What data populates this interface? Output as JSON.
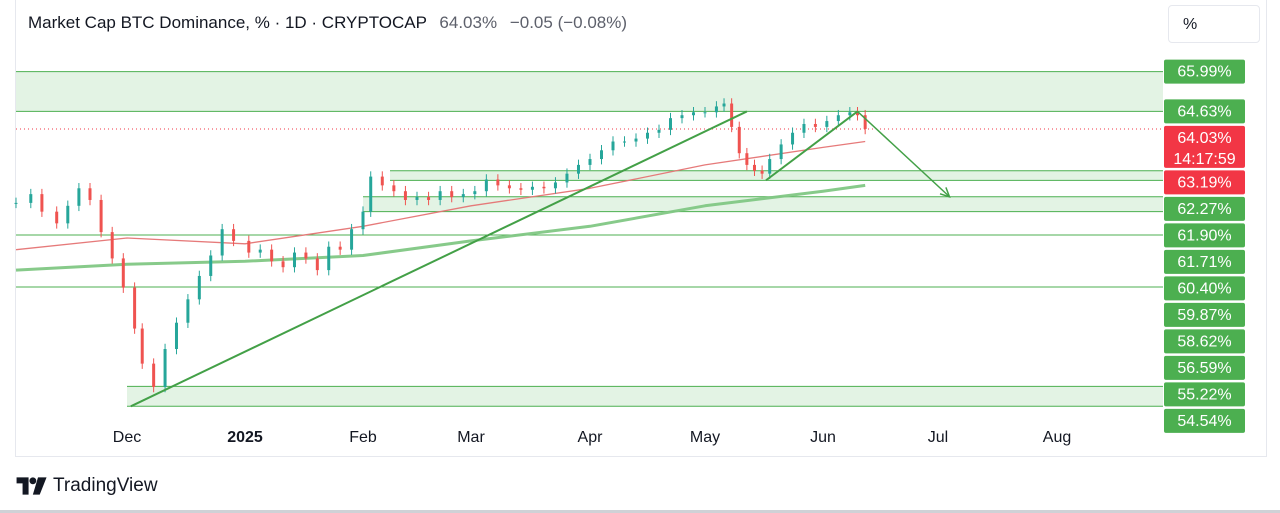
{
  "header": {
    "title": "Market Cap BTC Dominance, % · 1D · CRYPTOCAP",
    "last_price": "64.03%",
    "change": "−0.05 (−0.08%)"
  },
  "scale_button": {
    "label": "%"
  },
  "branding": {
    "name": "TradingView",
    "icon": "tradingview-logo-icon"
  },
  "colors": {
    "up": "#26a69a",
    "down": "#ef5350",
    "zone": "#e3f3e4",
    "zone_line": "#4caf50",
    "label_green": "#4caf50",
    "label_red": "#f23645",
    "ma_fast": "#e57373",
    "ma_slow": "#81c784",
    "trend": "#43a047"
  },
  "chart_data": {
    "type": "candlestick",
    "symbol": "Market Cap BTC Dominance",
    "timeframe": "1D",
    "exchange": "CRYPTOCAP",
    "last": 64.03,
    "countdown": "14:17:59",
    "x_axis_labels": [
      "Dec",
      "2025",
      "Feb",
      "Mar",
      "Apr",
      "May",
      "Jun",
      "Jul",
      "Aug"
    ],
    "x_axis_dates": [
      "2024-12-01",
      "2025-01-01",
      "2025-02-01",
      "2025-03-01",
      "2025-04-01",
      "2025-05-01",
      "2025-06-01",
      "2025-07-01",
      "2025-08-01"
    ],
    "price_labels": [
      {
        "text": "65.99%",
        "value": 65.99,
        "color": "green"
      },
      {
        "text": "64.63%",
        "value": 64.63,
        "color": "green"
      },
      {
        "text": "64.03%",
        "value": 64.03,
        "color": "red",
        "sub": "14:17:59"
      },
      {
        "text": "63.19%",
        "value": 63.19,
        "color": "red"
      },
      {
        "text": "62.27%",
        "value": 62.27,
        "color": "green"
      },
      {
        "text": "61.90%",
        "value": 61.9,
        "color": "green"
      },
      {
        "text": "61.71%",
        "value": 61.71,
        "color": "green"
      },
      {
        "text": "60.40%",
        "value": 60.4,
        "color": "green"
      },
      {
        "text": "59.87%",
        "value": 59.87,
        "color": "green"
      },
      {
        "text": "58.62%",
        "value": 58.62,
        "color": "green"
      },
      {
        "text": "56.59%",
        "value": 56.59,
        "color": "green"
      },
      {
        "text": "55.22%",
        "value": 55.22,
        "color": "green"
      },
      {
        "text": "54.54%",
        "value": 54.54,
        "color": "green"
      }
    ],
    "zones": [
      {
        "from": 64.63,
        "to": 65.99,
        "start": "2024-11-01"
      },
      {
        "from": 62.27,
        "to": 62.6,
        "start": "2025-02-08"
      },
      {
        "from": 61.2,
        "to": 61.71,
        "start": "2025-02-01"
      },
      {
        "from": 54.54,
        "to": 55.22,
        "start": "2024-12-01"
      }
    ],
    "horizontal_lines": [
      60.4,
      58.62
    ],
    "trend_lines": [
      {
        "from": [
          "2024-12-02",
          54.54
        ],
        "to": [
          "2025-05-12",
          64.63
        ]
      },
      {
        "from": [
          "2025-05-17",
          62.27
        ],
        "to": [
          "2025-06-10",
          64.63
        ]
      }
    ],
    "projection_arrow": {
      "from": [
        "2025-06-10",
        64.63
      ],
      "to": [
        "2025-07-04",
        61.71
      ]
    },
    "moving_averages": [
      {
        "name": "MA fast",
        "color": "red",
        "points": [
          [
            "2024-11-01",
            59.9
          ],
          [
            "2024-12-01",
            60.3
          ],
          [
            "2025-01-01",
            60.1
          ],
          [
            "2025-02-01",
            60.7
          ],
          [
            "2025-03-01",
            61.4
          ],
          [
            "2025-04-01",
            62.0
          ],
          [
            "2025-05-01",
            62.8
          ],
          [
            "2025-06-01",
            63.4
          ],
          [
            "2025-06-12",
            63.6
          ]
        ]
      },
      {
        "name": "MA slow",
        "color": "green",
        "points": [
          [
            "2024-11-01",
            59.2
          ],
          [
            "2024-12-01",
            59.4
          ],
          [
            "2025-01-01",
            59.5
          ],
          [
            "2025-02-01",
            59.7
          ],
          [
            "2025-03-01",
            60.2
          ],
          [
            "2025-04-01",
            60.7
          ],
          [
            "2025-05-01",
            61.4
          ],
          [
            "2025-06-01",
            61.9
          ],
          [
            "2025-06-12",
            62.1
          ]
        ]
      }
    ],
    "closes": [
      [
        "2024-11-01",
        61.5
      ],
      [
        "2024-11-05",
        61.8
      ],
      [
        "2024-11-08",
        61.2
      ],
      [
        "2024-11-12",
        60.8
      ],
      [
        "2024-11-15",
        61.4
      ],
      [
        "2024-11-18",
        62.0
      ],
      [
        "2024-11-21",
        61.6
      ],
      [
        "2024-11-24",
        60.5
      ],
      [
        "2024-11-27",
        59.6
      ],
      [
        "2024-11-30",
        58.6
      ],
      [
        "2024-12-03",
        57.2
      ],
      [
        "2024-12-05",
        56.0
      ],
      [
        "2024-12-08",
        55.2
      ],
      [
        "2024-12-11",
        56.5
      ],
      [
        "2024-12-14",
        57.4
      ],
      [
        "2024-12-17",
        58.2
      ],
      [
        "2024-12-20",
        59.0
      ],
      [
        "2024-12-23",
        59.7
      ],
      [
        "2024-12-26",
        60.6
      ],
      [
        "2024-12-29",
        60.2
      ],
      [
        "2025-01-02",
        59.8
      ],
      [
        "2025-01-05",
        59.9
      ],
      [
        "2025-01-08",
        59.5
      ],
      [
        "2025-01-11",
        59.3
      ],
      [
        "2025-01-14",
        59.8
      ],
      [
        "2025-01-17",
        59.6
      ],
      [
        "2025-01-20",
        59.2
      ],
      [
        "2025-01-23",
        60.0
      ],
      [
        "2025-01-26",
        59.9
      ],
      [
        "2025-01-29",
        60.6
      ],
      [
        "2025-02-01",
        61.2
      ],
      [
        "2025-02-03",
        62.4
      ],
      [
        "2025-02-06",
        62.1
      ],
      [
        "2025-02-09",
        61.9
      ],
      [
        "2025-02-12",
        61.6
      ],
      [
        "2025-02-15",
        61.7
      ],
      [
        "2025-02-18",
        61.6
      ],
      [
        "2025-02-21",
        61.9
      ],
      [
        "2025-02-24",
        61.7
      ],
      [
        "2025-02-27",
        61.8
      ],
      [
        "2025-03-02",
        61.9
      ],
      [
        "2025-03-05",
        62.3
      ],
      [
        "2025-03-08",
        62.1
      ],
      [
        "2025-03-11",
        62.0
      ],
      [
        "2025-03-14",
        61.95
      ],
      [
        "2025-03-17",
        62.05
      ],
      [
        "2025-03-20",
        62.0
      ],
      [
        "2025-03-23",
        62.2
      ],
      [
        "2025-03-26",
        62.5
      ],
      [
        "2025-03-29",
        62.8
      ],
      [
        "2025-04-01",
        63.0
      ],
      [
        "2025-04-04",
        63.3
      ],
      [
        "2025-04-07",
        63.6
      ],
      [
        "2025-04-10",
        63.6
      ],
      [
        "2025-04-13",
        63.7
      ],
      [
        "2025-04-16",
        63.9
      ],
      [
        "2025-04-19",
        64.0
      ],
      [
        "2025-04-22",
        64.4
      ],
      [
        "2025-04-25",
        64.5
      ],
      [
        "2025-04-28",
        64.6
      ],
      [
        "2025-05-01",
        64.6
      ],
      [
        "2025-05-04",
        64.8
      ],
      [
        "2025-05-06",
        64.9
      ],
      [
        "2025-05-08",
        64.1
      ],
      [
        "2025-05-10",
        63.2
      ],
      [
        "2025-05-12",
        62.8
      ],
      [
        "2025-05-14",
        62.6
      ],
      [
        "2025-05-16",
        62.5
      ],
      [
        "2025-05-18",
        63.0
      ],
      [
        "2025-05-21",
        63.5
      ],
      [
        "2025-05-24",
        63.9
      ],
      [
        "2025-05-27",
        64.2
      ],
      [
        "2025-05-30",
        64.1
      ],
      [
        "2025-06-02",
        64.3
      ],
      [
        "2025-06-05",
        64.5
      ],
      [
        "2025-06-08",
        64.6
      ],
      [
        "2025-06-10",
        64.5
      ],
      [
        "2025-06-12",
        64.03
      ]
    ],
    "ylim": [
      53.9,
      66.8
    ]
  }
}
